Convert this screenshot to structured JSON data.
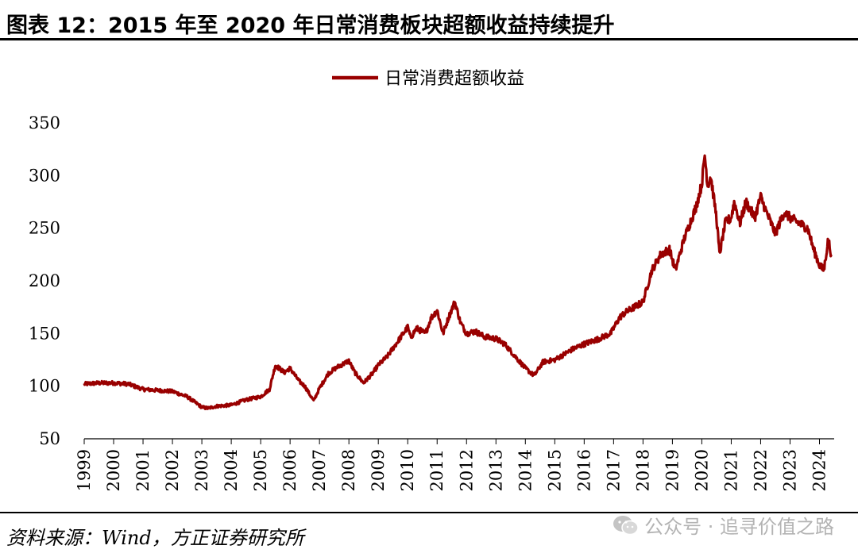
{
  "figure": {
    "title": "图表 12：2015 年至 2020 年日常消费板块超额收益持续提升",
    "source": "资料来源：Wind，方正证券研究所",
    "watermark": "公众号 · 追寻价值之路"
  },
  "colors": {
    "series": "#990000",
    "axis": "#000000"
  },
  "chart_data": {
    "type": "line",
    "title": "",
    "xlabel": "",
    "ylabel": "",
    "ylim": [
      50,
      350
    ],
    "yticks": [
      50,
      100,
      150,
      200,
      250,
      300,
      350
    ],
    "xlim": [
      1999.0,
      2024.5
    ],
    "xticks": [
      "1999",
      "2000",
      "2001",
      "2002",
      "2003",
      "2004",
      "2005",
      "2006",
      "2007",
      "2008",
      "2009",
      "2010",
      "2011",
      "2012",
      "2013",
      "2014",
      "2015",
      "2016",
      "2017",
      "2018",
      "2019",
      "2020",
      "2021",
      "2022",
      "2023",
      "2024"
    ],
    "grid": false,
    "legend": "top-center",
    "series": [
      {
        "name": "日常消费超额收益",
        "x": [
          1999.0,
          1999.5,
          2000.0,
          2000.5,
          2001.0,
          2001.5,
          2002.0,
          2002.5,
          2003.0,
          2003.2,
          2003.5,
          2004.0,
          2004.5,
          2005.0,
          2005.3,
          2005.5,
          2005.8,
          2006.0,
          2006.3,
          2006.5,
          2006.8,
          2007.0,
          2007.3,
          2007.6,
          2008.0,
          2008.2,
          2008.5,
          2008.8,
          2009.0,
          2009.3,
          2009.6,
          2010.0,
          2010.1,
          2010.3,
          2010.6,
          2010.8,
          2011.0,
          2011.2,
          2011.4,
          2011.6,
          2011.8,
          2012.0,
          2012.3,
          2012.6,
          2013.0,
          2013.3,
          2013.6,
          2014.0,
          2014.3,
          2014.6,
          2015.0,
          2015.3,
          2015.6,
          2016.0,
          2016.5,
          2016.9,
          2017.2,
          2017.4,
          2017.7,
          2018.0,
          2018.3,
          2018.6,
          2018.9,
          2019.1,
          2019.4,
          2019.6,
          2019.8,
          2020.0,
          2020.1,
          2020.2,
          2020.3,
          2020.5,
          2020.6,
          2020.8,
          2021.0,
          2021.1,
          2021.3,
          2021.5,
          2021.8,
          2022.0,
          2022.2,
          2022.5,
          2022.8,
          2023.0,
          2023.3,
          2023.6,
          2023.8,
          2024.0,
          2024.15,
          2024.3,
          2024.4
        ],
        "values": [
          102,
          103,
          103,
          102,
          97,
          96,
          95,
          90,
          80,
          79,
          81,
          82,
          87,
          90,
          97,
          120,
          113,
          117,
          105,
          100,
          86,
          98,
          112,
          118,
          124,
          113,
          103,
          112,
          120,
          128,
          140,
          156,
          146,
          155,
          150,
          165,
          172,
          150,
          166,
          180,
          160,
          150,
          152,
          147,
          145,
          140,
          130,
          117,
          110,
          123,
          125,
          130,
          135,
          140,
          145,
          150,
          165,
          170,
          175,
          180,
          210,
          225,
          230,
          210,
          240,
          255,
          270,
          292,
          320,
          290,
          300,
          260,
          225,
          255,
          260,
          275,
          255,
          275,
          260,
          280,
          265,
          245,
          265,
          260,
          255,
          250,
          230,
          215,
          210,
          240,
          225
        ]
      }
    ]
  }
}
